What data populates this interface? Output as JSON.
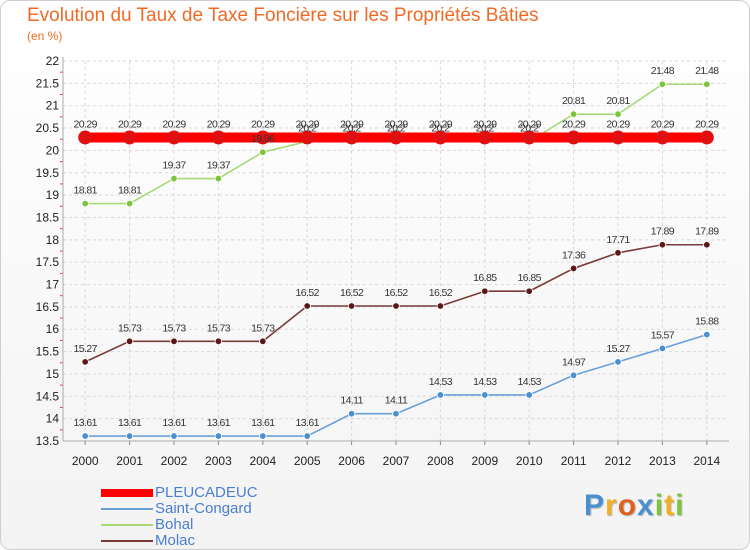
{
  "chart_data": {
    "type": "line",
    "title": "Evolution du Taux de Taxe Foncière sur les Propriétés Bâties",
    "ylabel": "(en %)",
    "xlabel": "",
    "x": [
      "2000",
      "2001",
      "2002",
      "2003",
      "2004",
      "2005",
      "2006",
      "2007",
      "2008",
      "2009",
      "2010",
      "2011",
      "2012",
      "2013",
      "2014"
    ],
    "ylim": [
      13.5,
      22
    ],
    "yticks": [
      "13.5",
      "14",
      "14.5",
      "15",
      "15.5",
      "16",
      "16.5",
      "17",
      "17.5",
      "18",
      "18.5",
      "19",
      "19.5",
      "20",
      "20.5",
      "21",
      "21.5",
      "22"
    ],
    "grid": true,
    "legend_position": "bottom-left",
    "series": [
      {
        "name": "PLEUCADEUC",
        "color": "#ff0000",
        "marker": "#e01010",
        "values": [
          20.29,
          20.29,
          20.29,
          20.29,
          20.29,
          20.29,
          20.29,
          20.29,
          20.29,
          20.29,
          20.29,
          20.29,
          20.29,
          20.29,
          20.29
        ],
        "labels": [
          "20.29",
          "20.29",
          "20.29",
          "20.29",
          "20.29",
          "20.29",
          "20.29",
          "20.29",
          "20.29",
          "20.29",
          "20.29",
          "20.29",
          "20.29",
          "20.29",
          "20.29"
        ]
      },
      {
        "name": "Saint-Congard",
        "color": "#6aa0d8",
        "marker": "#4a90d0",
        "values": [
          13.61,
          13.61,
          13.61,
          13.61,
          13.61,
          13.61,
          14.11,
          14.11,
          14.53,
          14.53,
          14.53,
          14.97,
          15.27,
          15.57,
          15.88
        ],
        "labels": [
          "13.61",
          "13.61",
          "13.61",
          "13.61",
          "13.61",
          "13.61",
          "14.11",
          "14.11",
          "14.53",
          "14.53",
          "14.53",
          "14.97",
          "15.27",
          "15.57",
          "15.88"
        ]
      },
      {
        "name": "Bohal",
        "color": "#a8d878",
        "marker": "#7cc43c",
        "values": [
          18.81,
          18.81,
          19.37,
          19.37,
          19.96,
          20.2,
          20.2,
          20.2,
          20.2,
          20.2,
          20.2,
          20.81,
          20.81,
          21.48,
          21.48
        ],
        "labels": [
          "18.81",
          "18.81",
          "19.37",
          "19.37",
          "19.96",
          "20.2",
          "20.2",
          "20.2",
          "20.2",
          "20.2",
          "20.2",
          "20.81",
          "20.81",
          "21.48",
          "21.48"
        ]
      },
      {
        "name": "Molac",
        "color": "#7a3a3a",
        "marker": "#5a1818",
        "values": [
          15.27,
          15.73,
          15.73,
          15.73,
          15.73,
          16.52,
          16.52,
          16.52,
          16.52,
          16.85,
          16.85,
          17.36,
          17.71,
          17.89,
          17.89
        ],
        "labels": [
          "15.27",
          "15.73",
          "15.73",
          "15.73",
          "15.73",
          "16.52",
          "16.52",
          "16.52",
          "16.52",
          "16.85",
          "16.85",
          "17.36",
          "17.71",
          "17.89",
          "17.89"
        ]
      }
    ]
  },
  "logo": {
    "text": "Proxiti",
    "letters": [
      "P",
      "r",
      "o",
      "x",
      "i",
      "t",
      "i"
    ],
    "colors": [
      "#4a90d0",
      "#f0b020",
      "#e06020",
      "#4a90d0",
      "#7cc43c",
      "#f0b020",
      "#7cc43c"
    ]
  }
}
